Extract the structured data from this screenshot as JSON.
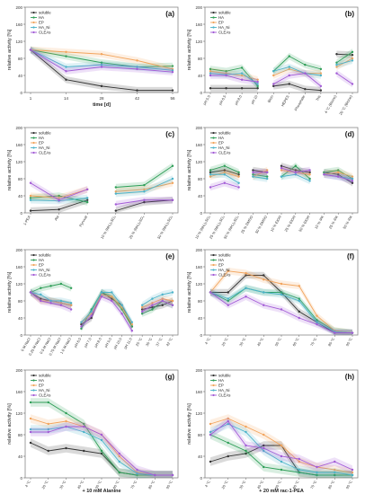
{
  "figure": {
    "ylabel": "relative activity [%]",
    "legend": [
      "soluble",
      "HA",
      "EP",
      "HA_Ni",
      "CLEAs"
    ],
    "series_colors": {
      "soluble": "#333333",
      "HA": "#2e9e57",
      "EP": "#f2a45c",
      "HA_Ni": "#4cb3c9",
      "CLEAs": "#a25bd6"
    }
  },
  "chart_data": [
    {
      "panel": "(a)",
      "type": "line",
      "xlabel": "time [d]",
      "categories": [
        "1",
        "14",
        "28",
        "42",
        "56"
      ],
      "ylim": [
        0,
        200
      ],
      "series": [
        {
          "name": "soluble",
          "values": [
            100,
            30,
            15,
            5,
            5
          ]
        },
        {
          "name": "HA",
          "values": [
            100,
            85,
            70,
            60,
            62
          ]
        },
        {
          "name": "EP",
          "values": [
            100,
            95,
            90,
            75,
            55
          ]
        },
        {
          "name": "HA_Ni",
          "values": [
            100,
            60,
            65,
            60,
            52
          ]
        },
        {
          "name": "CLEAs",
          "values": [
            100,
            50,
            60,
            55,
            48
          ]
        }
      ]
    },
    {
      "panel": "(b)",
      "type": "line",
      "categories": [
        "pH 5.5",
        "pH 6.5",
        "pH 8.0",
        "pH 10",
        "Bicin",
        "HEPES",
        "Phosphate",
        "Tris",
        "4 °C (Bicine)",
        "20 °C (Bicine)"
      ],
      "groups": [
        [
          0,
          1,
          2,
          3
        ],
        [
          4,
          5,
          6,
          7
        ],
        [
          8,
          9
        ]
      ],
      "ylim": [
        0,
        200
      ],
      "series": [
        {
          "name": "soluble",
          "values": [
            10,
            10,
            10,
            10,
            15,
            20,
            8,
            5,
            90,
            88
          ]
        },
        {
          "name": "HA",
          "values": [
            55,
            50,
            58,
            15,
            50,
            85,
            65,
            55,
            70,
            95
          ]
        },
        {
          "name": "EP",
          "values": [
            50,
            45,
            40,
            30,
            40,
            55,
            45,
            45,
            60,
            80
          ]
        },
        {
          "name": "HA_Ni",
          "values": [
            45,
            42,
            45,
            20,
            50,
            60,
            45,
            40,
            65,
            75
          ]
        },
        {
          "name": "CLEAs",
          "values": [
            40,
            40,
            30,
            25,
            20,
            40,
            45,
            15,
            45,
            20
          ]
        }
      ]
    },
    {
      "panel": "(c)",
      "type": "line",
      "categories": [
        "1-PEA",
        "Ala",
        "Pyruvat",
        "10 % (NH₄)₂SO₄",
        "25 % (NH₄)₂SO₄",
        "50 % (NH₄)₂SO₄"
      ],
      "groups": [
        [
          0,
          1,
          2
        ],
        [
          3,
          4,
          5
        ]
      ],
      "ylim": [
        0,
        200
      ],
      "series": [
        {
          "name": "soluble",
          "values": [
            5,
            8,
            30,
            5,
            25,
            30
          ]
        },
        {
          "name": "HA",
          "values": [
            35,
            40,
            25,
            60,
            65,
            110
          ]
        },
        {
          "name": "EP",
          "values": [
            40,
            35,
            55,
            50,
            55,
            70
          ]
        },
        {
          "name": "HA_Ni",
          "values": [
            30,
            28,
            35,
            45,
            50,
            80
          ]
        },
        {
          "name": "CLEAs",
          "values": [
            70,
            30,
            55,
            20,
            30,
            30
          ]
        }
      ]
    },
    {
      "panel": "(d)",
      "type": "line",
      "categories": [
        "10 % (NH₄)₂SO₄",
        "25 % (NH₄)₂SO₄",
        "50 % (NH₄)₂SO₄",
        "25 % DMSO",
        "50 % DMSO",
        "10 % EtOH",
        "25 % EtOH",
        "50 % EtOH",
        "10 % IPA",
        "25 % IPA",
        "50 % IPA"
      ],
      "groups": [
        [
          0,
          1,
          2
        ],
        [
          3,
          4
        ],
        [
          5,
          6,
          7
        ],
        [
          8,
          9,
          10
        ]
      ],
      "ylim": [
        0,
        200
      ],
      "series": [
        {
          "name": "soluble",
          "values": [
            95,
            100,
            90,
            100,
            95,
            110,
            100,
            95,
            95,
            90,
            70
          ]
        },
        {
          "name": "HA",
          "values": [
            100,
            110,
            95,
            90,
            85,
            85,
            110,
            80,
            95,
            100,
            80
          ]
        },
        {
          "name": "EP",
          "values": [
            85,
            95,
            85,
            85,
            100,
            100,
            95,
            90,
            90,
            95,
            85
          ]
        },
        {
          "name": "HA_Ni",
          "values": [
            90,
            90,
            70,
            85,
            80,
            85,
            90,
            75,
            90,
            85,
            80
          ]
        },
        {
          "name": "CLEAs",
          "values": [
            60,
            70,
            60,
            95,
            95,
            105,
            95,
            100,
            90,
            85,
            75
          ]
        }
      ]
    },
    {
      "panel": "(e)",
      "type": "line",
      "categories": [
        "0 M NaCl",
        "0.25 M NaCl",
        "0.5 M NaCl",
        "0.75 M NaCl",
        "1.0 M NaCl",
        "pH 6.0",
        "pH 7.0",
        "pH 8.0",
        "pH 9.0",
        "pH 10.0",
        "pH 11.0",
        "25 °C",
        "30 °C",
        "37 °C",
        "42 °C"
      ],
      "groups": [
        [
          0,
          1,
          2,
          3,
          4
        ],
        [
          5,
          6,
          7,
          8,
          9,
          10
        ],
        [
          11,
          12,
          13,
          14
        ]
      ],
      "ylim": [
        0,
        200
      ],
      "series": [
        {
          "name": "soluble",
          "values": [
            100,
            85,
            80,
            75,
            70,
            25,
            40,
            100,
            85,
            70,
            20,
            60,
            65,
            70,
            80
          ]
        },
        {
          "name": "HA",
          "values": [
            100,
            110,
            115,
            120,
            110,
            15,
            60,
            100,
            90,
            60,
            20,
            50,
            60,
            80,
            70
          ]
        },
        {
          "name": "EP",
          "values": [
            100,
            80,
            80,
            75,
            70,
            30,
            50,
            95,
            90,
            65,
            25,
            65,
            75,
            85,
            80
          ]
        },
        {
          "name": "HA_Ni",
          "values": [
            100,
            95,
            80,
            80,
            75,
            30,
            55,
            100,
            100,
            70,
            30,
            70,
            85,
            95,
            100
          ]
        },
        {
          "name": "CLEAs",
          "values": [
            100,
            80,
            75,
            70,
            60,
            20,
            45,
            90,
            80,
            50,
            10,
            55,
            70,
            80,
            70
          ]
        }
      ]
    },
    {
      "panel": "(f)",
      "type": "line",
      "categories": [
        "4 °C",
        "20 °C",
        "30 °C",
        "40 °C",
        "50 °C",
        "60 °C",
        "70 °C",
        "80 °C",
        "90 °C"
      ],
      "ylim": [
        0,
        200
      ],
      "series": [
        {
          "name": "soluble",
          "values": [
            100,
            100,
            140,
            140,
            100,
            55,
            30,
            5,
            5
          ]
        },
        {
          "name": "HA",
          "values": [
            100,
            80,
            110,
            100,
            100,
            85,
            35,
            10,
            5
          ]
        },
        {
          "name": "EP",
          "values": [
            100,
            150,
            145,
            130,
            120,
            115,
            45,
            10,
            5
          ]
        },
        {
          "name": "HA_Ni",
          "values": [
            100,
            85,
            110,
            100,
            95,
            80,
            30,
            8,
            5
          ]
        },
        {
          "name": "CLEAs",
          "values": [
            100,
            70,
            90,
            70,
            60,
            40,
            25,
            5,
            5
          ]
        }
      ]
    },
    {
      "panel": "(g)",
      "type": "line",
      "xlabel": "+ 10 mM Alanine",
      "categories": [
        "4 °C",
        "20 °C",
        "30 °C",
        "40 °C",
        "50 °C",
        "60 °C",
        "70 °C",
        "80 °C",
        "90 °C"
      ],
      "ylim": [
        0,
        200
      ],
      "series": [
        {
          "name": "soluble",
          "values": [
            65,
            50,
            55,
            50,
            45,
            10,
            5,
            5,
            5
          ]
        },
        {
          "name": "HA",
          "values": [
            140,
            140,
            120,
            100,
            50,
            10,
            5,
            5,
            5
          ]
        },
        {
          "name": "EP",
          "values": [
            110,
            100,
            105,
            95,
            80,
            40,
            10,
            5,
            5
          ]
        },
        {
          "name": "HA_Ni",
          "values": [
            90,
            90,
            95,
            85,
            70,
            30,
            8,
            5,
            5
          ]
        },
        {
          "name": "CLEAs",
          "values": [
            85,
            85,
            95,
            95,
            80,
            45,
            15,
            5,
            5
          ]
        }
      ]
    },
    {
      "panel": "(h)",
      "type": "line",
      "xlabel": "+ 20 mM rac-1-PEA",
      "categories": [
        "4 °C",
        "20 °C",
        "30 °C",
        "40 °C",
        "50 °C",
        "60 °C",
        "70 °C",
        "80 °C",
        "90 °C"
      ],
      "ylim": [
        0,
        200
      ],
      "series": [
        {
          "name": "soluble",
          "values": [
            30,
            40,
            45,
            60,
            60,
            10,
            5,
            5,
            5
          ]
        },
        {
          "name": "HA",
          "values": [
            80,
            65,
            50,
            20,
            15,
            10,
            5,
            5,
            5
          ]
        },
        {
          "name": "EP",
          "values": [
            100,
            110,
            95,
            80,
            60,
            30,
            20,
            15,
            10
          ]
        },
        {
          "name": "HA_Ni",
          "values": [
            85,
            100,
            85,
            50,
            30,
            15,
            10,
            10,
            5
          ]
        },
        {
          "name": "CLEAs",
          "values": [
            80,
            105,
            60,
            55,
            40,
            35,
            20,
            30,
            15
          ]
        }
      ]
    }
  ]
}
